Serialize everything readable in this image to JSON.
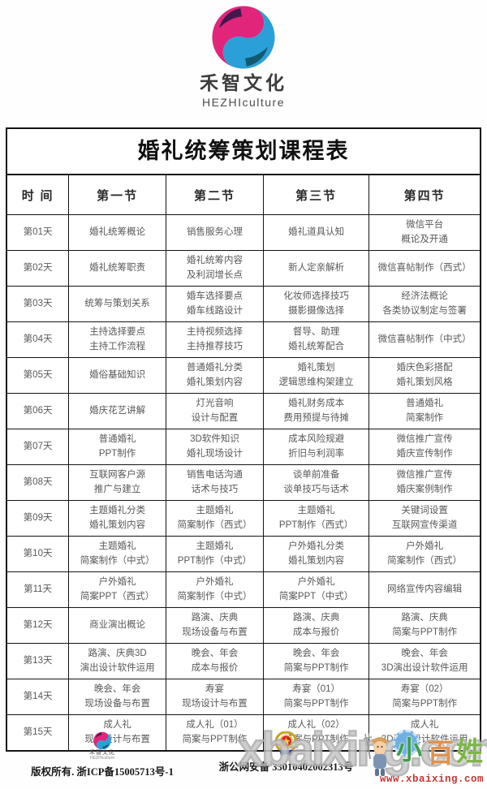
{
  "brand": {
    "name_cn": "禾智文化",
    "name_en": "HEZHIculture"
  },
  "table": {
    "title": "婚礼统筹策划课程表",
    "headers": [
      "时  间",
      "第一节",
      "第二节",
      "第三节",
      "第四节"
    ],
    "rows": [
      {
        "day": "第01天",
        "cells": [
          "婚礼统筹概论",
          "销售服务心理",
          "婚礼道具认知",
          "微信平台\n概论及开通"
        ]
      },
      {
        "day": "第02天",
        "cells": [
          "婚礼统筹职责",
          "婚礼统筹内容\n及利润增长点",
          "新人定亲解析",
          "微信喜帖制作（西式）"
        ]
      },
      {
        "day": "第03天",
        "cells": [
          "统筹与策划关系",
          "婚车选择要点\n婚车线路设计",
          "化妆师选择技巧\n摄影摄像选择",
          "经济法概论\n各类协议制定与签署"
        ]
      },
      {
        "day": "第04天",
        "cells": [
          "主持选择要点\n主持工作流程",
          "主持视频选择\n主持推荐技巧",
          "督导、助理\n婚礼统筹配合",
          "微信喜帖制作（中式）"
        ]
      },
      {
        "day": "第05天",
        "cells": [
          "婚俗基础知识",
          "普通婚礼分类\n婚礼策划内容",
          "婚礼策划\n逻辑思维构架建立",
          "婚庆色彩搭配\n婚礼策划风格"
        ]
      },
      {
        "day": "第06天",
        "cells": [
          "婚庆花艺讲解",
          "灯光音响\n设计与配置",
          "婚礼财务成本\n费用预提与待摊",
          "普通婚礼\n简案制作"
        ]
      },
      {
        "day": "第07天",
        "cells": [
          "普通婚礼\nPPT制作",
          "3D软件知识\n婚礼现场设计",
          "成本风险规避\n折旧与利润率",
          "微信推广宣传\n婚庆宣传制作"
        ]
      },
      {
        "day": "第08天",
        "cells": [
          "互联网客户源\n推广与建立",
          "销售电话沟通\n话术与技巧",
          "谈单前准备\n谈单技巧与话术",
          "微信推广宣传\n婚庆案例制作"
        ]
      },
      {
        "day": "第09天",
        "cells": [
          "主题婚礼分类\n婚礼策划内容",
          "主题婚礼\n简案制作（西式）",
          "主题婚礼\nPPT制作（西式）",
          "关键词设置\n互联网宣传渠道"
        ]
      },
      {
        "day": "第10天",
        "cells": [
          "主题婚礼\n简案制作（中式）",
          "主题婚礼\nPPT制作（中式）",
          "户外婚礼分类\n婚礼策划内容",
          "户外婚礼\n简案制作（西式）"
        ]
      },
      {
        "day": "第11天",
        "cells": [
          "户外婚礼\n简案PPT（西式）",
          "户外婚礼\n简案制作（中式）",
          "户外婚礼\n简案PPT（中式）",
          "网络宣传内容编辑"
        ]
      },
      {
        "day": "第12天",
        "cells": [
          "商业演出概论",
          "路演、庆典\n现场设备与布置",
          "路演、庆典\n成本与报价",
          "路演、庆典\n简案与PPT制作"
        ]
      },
      {
        "day": "第13天",
        "cells": [
          "路演、庆典3D\n演出设计软件运用",
          "晚会、年会\n成本与报价",
          "晚会、年会\n简案与PPT制作",
          "晚会、年会\n3D演出设计软件运用"
        ]
      },
      {
        "day": "第14天",
        "cells": [
          "晚会、年会\n现场设备与布置",
          "寿宴\n现场设计与布置",
          "寿宴（01）\n简案与PPT制作",
          "寿宴（02）\n简案与PPT制作"
        ]
      },
      {
        "day": "第15天",
        "cells": [
          "成人礼\n现场设计与布置",
          "成人礼（01）\n简案与PPT制作",
          "成人礼（02）\n简案与PPT制作",
          "成人礼\n3D演出设计软件运用"
        ]
      }
    ]
  },
  "footer": {
    "brand_cn": "禾智文化",
    "brand_en": "HEZHIculture",
    "copyright": "版权所有. 浙ICP备15005713号-1",
    "security_record": "浙公网安备 33010402002313号"
  },
  "watermark": {
    "big_text": "xbaixing.com",
    "url": "www.xbaixing.com",
    "char_xiao": "小",
    "char_bai": "百",
    "char_xing": "姓"
  },
  "colors": {
    "logo_magenta": "#e0257b",
    "logo_purple": "#42174b",
    "logo_blue": "#2ba0d8",
    "logo_teal": "#115a72",
    "cell_text": "#585858",
    "watermark_red": "#c63434"
  }
}
